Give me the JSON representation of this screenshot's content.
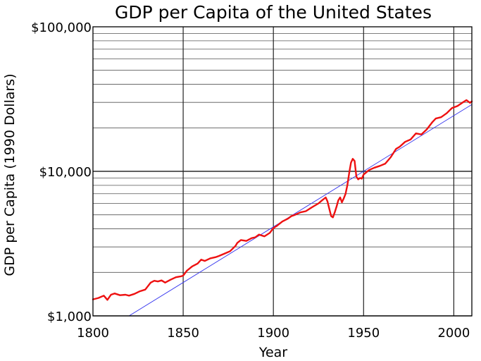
{
  "chart_data": {
    "type": "line",
    "title": "GDP per Capita of the United States",
    "xlabel": "Year",
    "ylabel": "GDP per Capita (1990 Dollars)",
    "x_scale": "linear",
    "y_scale": "log",
    "xlim": [
      1800,
      2010
    ],
    "ylim": [
      1000,
      100000
    ],
    "grid": true,
    "x_ticks": [
      1800,
      1850,
      1900,
      1950,
      2000
    ],
    "x_tick_labels": [
      "1800",
      "1850",
      "1900",
      "1950",
      "2000"
    ],
    "y_ticks": [
      1000,
      10000,
      100000
    ],
    "y_tick_labels": [
      "$1,000",
      "$10,000",
      "$100,000"
    ],
    "colors": {
      "series": "#ee1111",
      "trend": "#3333ee"
    },
    "series": [
      {
        "x": [
          1800,
          1803,
          1806,
          1808,
          1810,
          1812,
          1815,
          1818,
          1820,
          1823,
          1826,
          1829,
          1830,
          1832,
          1834,
          1836,
          1838,
          1840,
          1843,
          1846,
          1849,
          1850,
          1852,
          1855,
          1858,
          1860,
          1862,
          1865,
          1868,
          1870,
          1873,
          1876,
          1879,
          1880,
          1882,
          1885,
          1888,
          1890,
          1892,
          1895,
          1898,
          1900,
          1902,
          1905,
          1908,
          1910,
          1912,
          1915,
          1918,
          1920,
          1922,
          1925,
          1927,
          1929,
          1930,
          1931,
          1932,
          1933,
          1934,
          1935,
          1936,
          1937,
          1938,
          1939,
          1940,
          1941,
          1942,
          1943,
          1944,
          1945,
          1946,
          1947,
          1948,
          1949,
          1950,
          1953,
          1956,
          1959,
          1962,
          1965,
          1968,
          1970,
          1973,
          1976,
          1979,
          1982,
          1985,
          1988,
          1990,
          1993,
          1996,
          1999,
          2002,
          2005,
          2007,
          2009,
          2010
        ],
        "y": [
          1300,
          1330,
          1380,
          1290,
          1400,
          1430,
          1390,
          1400,
          1380,
          1420,
          1480,
          1520,
          1580,
          1700,
          1750,
          1730,
          1760,
          1700,
          1780,
          1850,
          1880,
          1900,
          2050,
          2200,
          2300,
          2450,
          2400,
          2500,
          2550,
          2600,
          2700,
          2800,
          3050,
          3200,
          3350,
          3300,
          3450,
          3500,
          3650,
          3550,
          3750,
          4050,
          4200,
          4500,
          4700,
          4900,
          5000,
          5200,
          5300,
          5500,
          5700,
          6000,
          6300,
          6600,
          6200,
          5500,
          4900,
          4800,
          5200,
          5700,
          6300,
          6600,
          6100,
          6500,
          7000,
          8000,
          9700,
          11500,
          12200,
          11800,
          9200,
          8800,
          9000,
          8900,
          9500,
          10200,
          10600,
          10900,
          11300,
          12500,
          14300,
          14800,
          16000,
          16600,
          18300,
          18000,
          19500,
          21800,
          23200,
          23700,
          25200,
          27400,
          28300,
          30000,
          31100,
          29800,
          30500
        ]
      }
    ],
    "trend_line": {
      "x": [
        1820,
        2010
      ],
      "y": [
        1000,
        29000
      ]
    }
  }
}
